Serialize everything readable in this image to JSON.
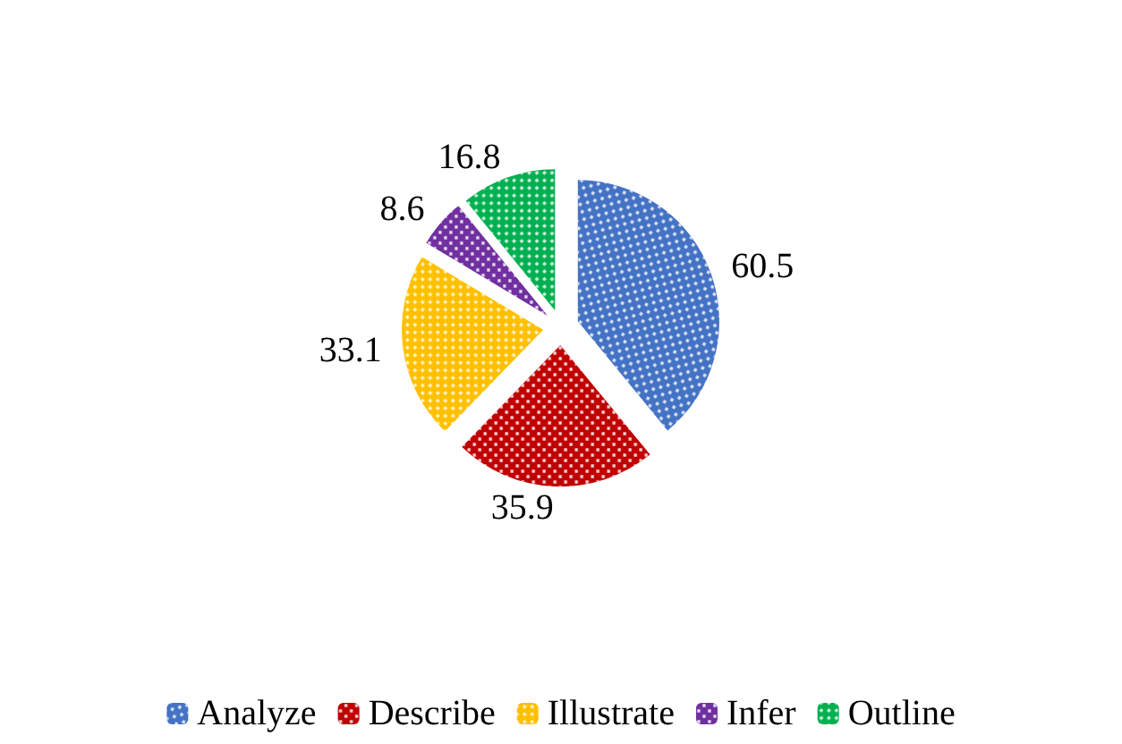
{
  "chart_data": {
    "type": "pie",
    "categories": [
      "Analyze",
      "Describe",
      "Illustrate",
      "Infer",
      "Outline"
    ],
    "values": [
      60.5,
      35.9,
      33.1,
      8.6,
      16.8
    ],
    "colors": [
      "#4472c4",
      "#c00000",
      "#ffc000",
      "#7030a0",
      "#00b050"
    ],
    "data_labels": true,
    "legend": "bottom"
  }
}
